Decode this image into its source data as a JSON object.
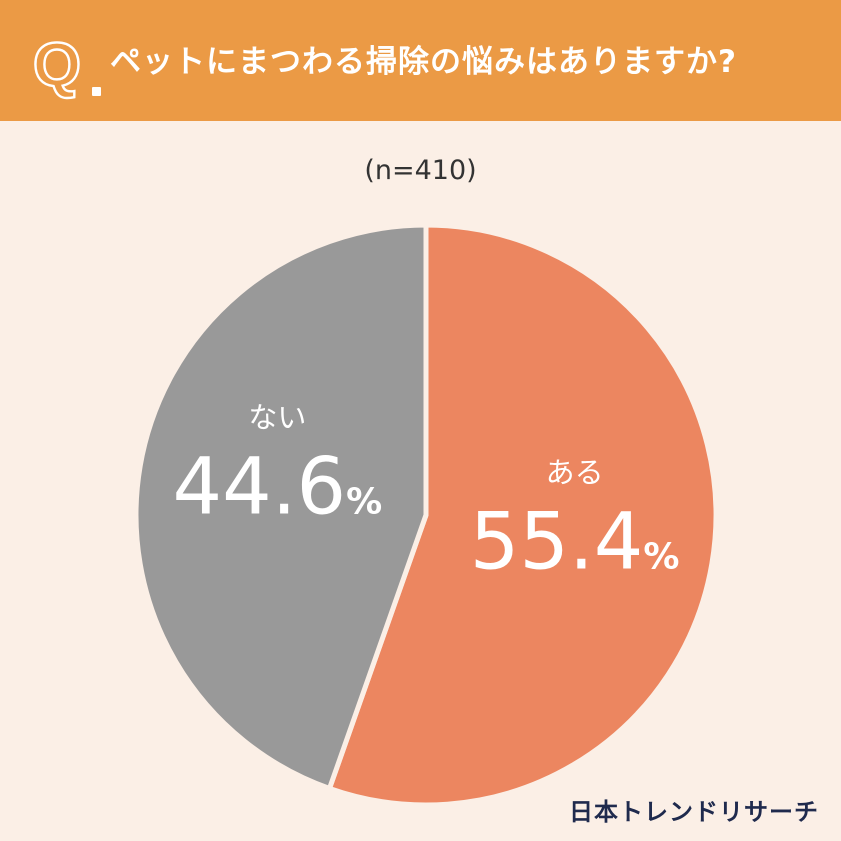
{
  "header": {
    "q_letter": "Q",
    "question": "ペットにまつわる掃除の悩みはありますか?"
  },
  "sample_size": "(n=410)",
  "colors": {
    "header_bg": "#eb9a45",
    "page_bg": "#fbefe6",
    "slice_yes": "#ec8660",
    "slice_no": "#999999"
  },
  "chart_data": {
    "type": "pie",
    "title": "ペットにまつわる掃除の悩みはありますか?",
    "slices": [
      {
        "label": "ある",
        "value": 55.4,
        "display": "55.4",
        "unit": "%",
        "color": "#ec8660"
      },
      {
        "label": "ない",
        "value": 44.6,
        "display": "44.6",
        "unit": "%",
        "color": "#999999"
      }
    ]
  },
  "brand": "日本トレンドリサーチ"
}
